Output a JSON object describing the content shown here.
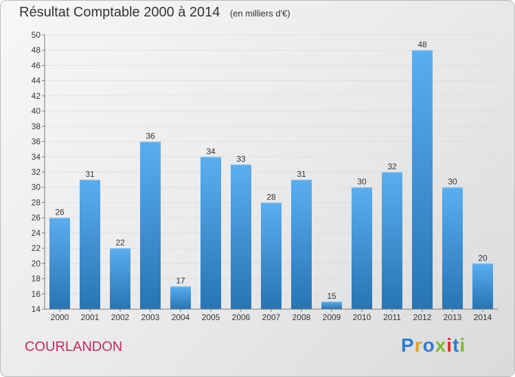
{
  "header": {
    "title": "Résultat Comptable 2000 à 2014",
    "subtitle": "(en milliers d'€)"
  },
  "footer": {
    "commune": "COURLANDON",
    "logo_text": "Proxiti"
  },
  "colors": {
    "bar_light": "#5aaef0",
    "bar_dark": "#2874b4",
    "commune": "#c8285a",
    "logo_letters": [
      "#2e7bd6",
      "#e6a21e",
      "#2e7bd6",
      "#7dba2a",
      "#e8232a",
      "#2e7bd6",
      "#7dba2a"
    ]
  },
  "chart_data": {
    "type": "bar",
    "categories": [
      "2000",
      "2001",
      "2002",
      "2003",
      "2004",
      "2005",
      "2006",
      "2007",
      "2008",
      "2009",
      "2010",
      "2011",
      "2012",
      "2013",
      "2014"
    ],
    "values": [
      26,
      31,
      22,
      36,
      17,
      34,
      33,
      28,
      31,
      15,
      30,
      32,
      48,
      30,
      20
    ],
    "ylim": [
      14,
      50
    ],
    "yticks": [
      14,
      16,
      18,
      20,
      22,
      24,
      26,
      28,
      30,
      32,
      34,
      36,
      38,
      40,
      42,
      44,
      46,
      48,
      50
    ],
    "grid": true,
    "data_labels": true
  }
}
